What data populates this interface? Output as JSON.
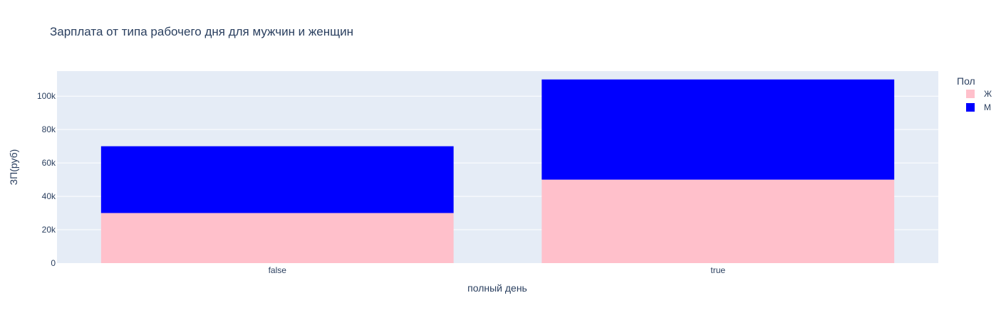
{
  "chart_data": {
    "type": "bar",
    "barmode": "stack",
    "title": "Зарплата от типа рабочего дня для мужчин и женщин",
    "xlabel": "полный день",
    "ylabel": "ЗП(руб)",
    "categories": [
      "false",
      "true"
    ],
    "ylim": [
      0,
      115000
    ],
    "yticks": [
      0,
      20000,
      40000,
      60000,
      80000,
      100000
    ],
    "ytick_labels": [
      "0",
      "20k",
      "40k",
      "60k",
      "80k",
      "100k"
    ],
    "legend_title": "Пол",
    "legend_position": "top-right",
    "grid": true,
    "plot_bg": "#E5ECF6",
    "series": [
      {
        "name": "Ж",
        "color": "#FFC0CB",
        "values": [
          30000,
          50000
        ]
      },
      {
        "name": "М",
        "color": "#0000FF",
        "values": [
          40000,
          60000
        ]
      }
    ]
  }
}
